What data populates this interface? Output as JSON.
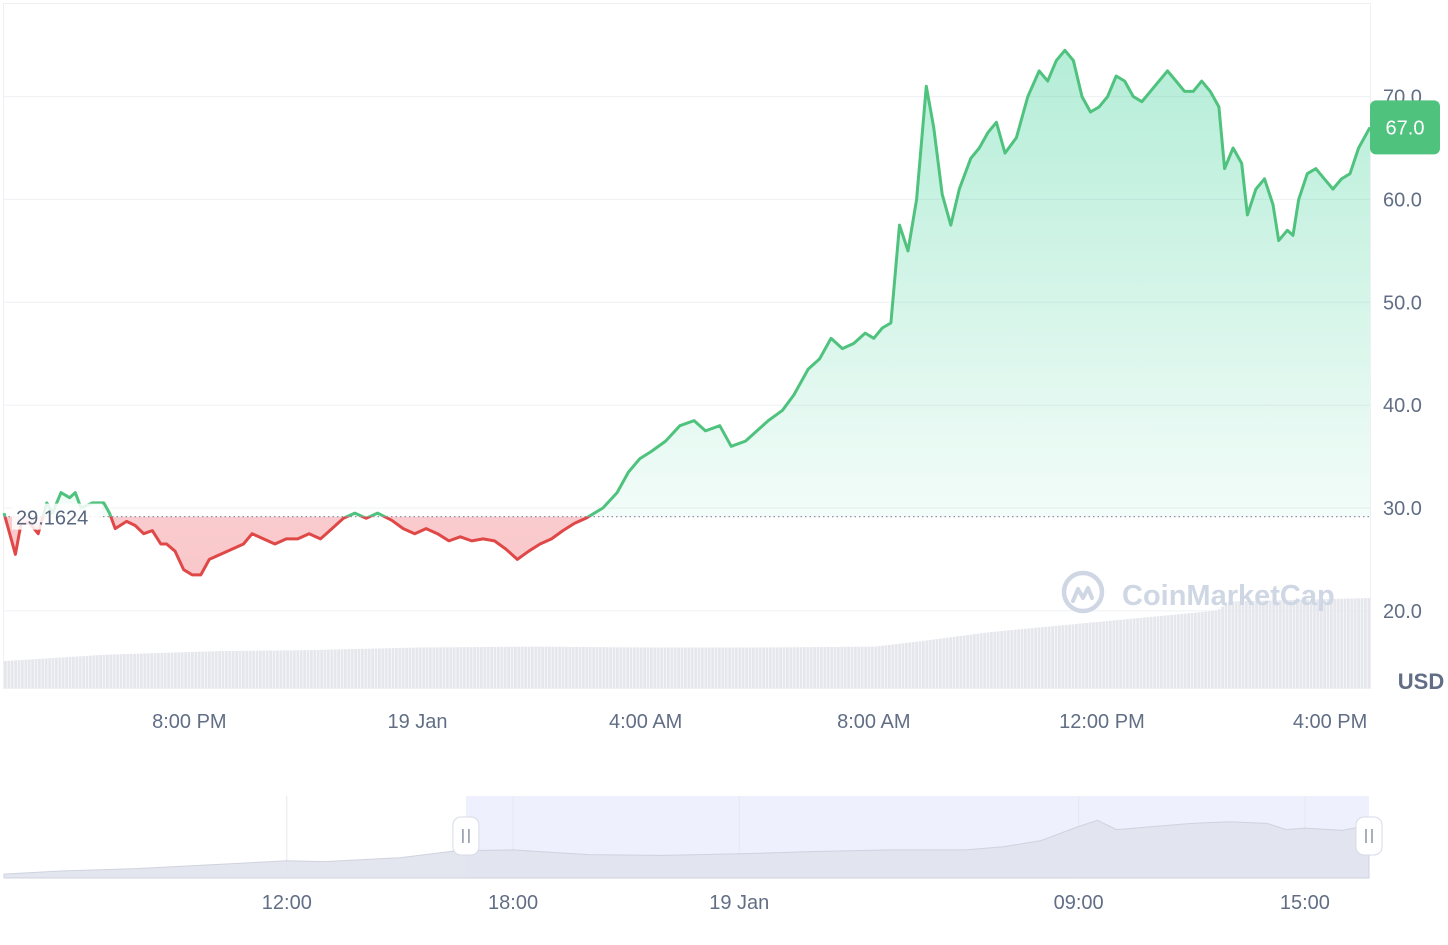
{
  "chart_data": {
    "type": "area",
    "currency_label": "USD",
    "baseline": {
      "value": 29.1624,
      "label": "29.1624"
    },
    "current_price": {
      "value": 67.0,
      "label": "67.0"
    },
    "y_ticks": [
      {
        "value": 20,
        "label": "20.0"
      },
      {
        "value": 30,
        "label": "30.0"
      },
      {
        "value": 40,
        "label": "40.0"
      },
      {
        "value": 50,
        "label": "50.0"
      },
      {
        "value": 60,
        "label": "60.0"
      },
      {
        "value": 70,
        "label": "70.0"
      }
    ],
    "x_ticks": [
      {
        "t": 20,
        "label": "8:00 PM"
      },
      {
        "t": 24,
        "label": "19 Jan"
      },
      {
        "t": 28,
        "label": "4:00 AM"
      },
      {
        "t": 32,
        "label": "8:00 AM"
      },
      {
        "t": 36,
        "label": "12:00 PM"
      },
      {
        "t": 40,
        "label": "4:00 PM"
      }
    ],
    "x_range": [
      16.75,
      40.7
    ],
    "ylim": [
      12.5,
      79
    ],
    "price_series": [
      [
        16.75,
        29.5
      ],
      [
        16.85,
        27.5
      ],
      [
        16.95,
        25.5
      ],
      [
        17.05,
        28.5
      ],
      [
        17.2,
        28.5
      ],
      [
        17.35,
        27.5
      ],
      [
        17.5,
        30.5
      ],
      [
        17.6,
        29.5
      ],
      [
        17.75,
        31.5
      ],
      [
        17.9,
        31.0
      ],
      [
        18.0,
        31.5
      ],
      [
        18.1,
        30.0
      ],
      [
        18.3,
        30.5
      ],
      [
        18.5,
        30.5
      ],
      [
        18.6,
        29.5
      ],
      [
        18.7,
        28.0
      ],
      [
        18.9,
        28.7
      ],
      [
        19.05,
        28.3
      ],
      [
        19.2,
        27.5
      ],
      [
        19.35,
        27.8
      ],
      [
        19.5,
        26.5
      ],
      [
        19.6,
        26.5
      ],
      [
        19.75,
        25.8
      ],
      [
        19.9,
        24.0
      ],
      [
        20.05,
        23.5
      ],
      [
        20.2,
        23.5
      ],
      [
        20.35,
        25.0
      ],
      [
        20.55,
        25.5
      ],
      [
        20.75,
        26.0
      ],
      [
        20.95,
        26.5
      ],
      [
        21.1,
        27.5
      ],
      [
        21.3,
        27.0
      ],
      [
        21.5,
        26.5
      ],
      [
        21.7,
        27.0
      ],
      [
        21.9,
        27.0
      ],
      [
        22.1,
        27.5
      ],
      [
        22.3,
        27.0
      ],
      [
        22.5,
        28.0
      ],
      [
        22.7,
        29.0
      ],
      [
        22.9,
        29.5
      ],
      [
        23.1,
        29.0
      ],
      [
        23.3,
        29.5
      ],
      [
        23.55,
        28.8
      ],
      [
        23.75,
        28.0
      ],
      [
        23.95,
        27.5
      ],
      [
        24.15,
        28.0
      ],
      [
        24.35,
        27.5
      ],
      [
        24.55,
        26.8
      ],
      [
        24.75,
        27.2
      ],
      [
        24.95,
        26.8
      ],
      [
        25.15,
        27.0
      ],
      [
        25.35,
        26.8
      ],
      [
        25.55,
        26.0
      ],
      [
        25.75,
        25.0
      ],
      [
        25.95,
        25.8
      ],
      [
        26.15,
        26.5
      ],
      [
        26.35,
        27.0
      ],
      [
        26.55,
        27.8
      ],
      [
        26.75,
        28.5
      ],
      [
        26.95,
        29.0
      ],
      [
        27.25,
        30.0
      ],
      [
        27.5,
        31.5
      ],
      [
        27.7,
        33.5
      ],
      [
        27.9,
        34.8
      ],
      [
        28.1,
        35.5
      ],
      [
        28.35,
        36.5
      ],
      [
        28.6,
        38.0
      ],
      [
        28.85,
        38.5
      ],
      [
        29.05,
        37.5
      ],
      [
        29.3,
        38.0
      ],
      [
        29.5,
        36.0
      ],
      [
        29.75,
        36.5
      ],
      [
        29.95,
        37.5
      ],
      [
        30.15,
        38.5
      ],
      [
        30.4,
        39.5
      ],
      [
        30.6,
        41.0
      ],
      [
        30.85,
        43.5
      ],
      [
        31.05,
        44.5
      ],
      [
        31.25,
        46.5
      ],
      [
        31.45,
        45.5
      ],
      [
        31.65,
        46.0
      ],
      [
        31.85,
        47.0
      ],
      [
        32.0,
        46.5
      ],
      [
        32.15,
        47.5
      ],
      [
        32.3,
        48.0
      ],
      [
        32.45,
        57.5
      ],
      [
        32.6,
        55.0
      ],
      [
        32.75,
        60.0
      ],
      [
        32.92,
        71.0
      ],
      [
        33.05,
        67.0
      ],
      [
        33.2,
        60.5
      ],
      [
        33.35,
        57.5
      ],
      [
        33.5,
        61.0
      ],
      [
        33.7,
        64.0
      ],
      [
        33.85,
        65.0
      ],
      [
        34.0,
        66.5
      ],
      [
        34.15,
        67.5
      ],
      [
        34.3,
        64.5
      ],
      [
        34.5,
        66.0
      ],
      [
        34.7,
        70.0
      ],
      [
        34.9,
        72.5
      ],
      [
        35.05,
        71.5
      ],
      [
        35.2,
        73.5
      ],
      [
        35.35,
        74.5
      ],
      [
        35.5,
        73.5
      ],
      [
        35.65,
        70.0
      ],
      [
        35.8,
        68.5
      ],
      [
        35.95,
        69.0
      ],
      [
        36.1,
        70.0
      ],
      [
        36.25,
        72.0
      ],
      [
        36.4,
        71.5
      ],
      [
        36.55,
        70.0
      ],
      [
        36.7,
        69.5
      ],
      [
        36.85,
        70.5
      ],
      [
        37.0,
        71.5
      ],
      [
        37.15,
        72.5
      ],
      [
        37.3,
        71.5
      ],
      [
        37.45,
        70.5
      ],
      [
        37.6,
        70.5
      ],
      [
        37.75,
        71.5
      ],
      [
        37.9,
        70.5
      ],
      [
        38.05,
        69.0
      ],
      [
        38.15,
        63.0
      ],
      [
        38.3,
        65.0
      ],
      [
        38.45,
        63.5
      ],
      [
        38.55,
        58.5
      ],
      [
        38.7,
        61.0
      ],
      [
        38.85,
        62.0
      ],
      [
        39.0,
        59.5
      ],
      [
        39.1,
        56.0
      ],
      [
        39.25,
        57.0
      ],
      [
        39.35,
        56.5
      ],
      [
        39.45,
        60.0
      ],
      [
        39.6,
        62.5
      ],
      [
        39.75,
        63.0
      ],
      [
        39.9,
        62.0
      ],
      [
        40.05,
        61.0
      ],
      [
        40.2,
        62.0
      ],
      [
        40.35,
        62.5
      ],
      [
        40.5,
        65.0
      ],
      [
        40.7,
        67.0
      ]
    ],
    "volume_relative": [
      [
        16.75,
        0.3
      ],
      [
        17.5,
        0.33
      ],
      [
        18.5,
        0.37
      ],
      [
        19.5,
        0.39
      ],
      [
        20.5,
        0.41
      ],
      [
        22.0,
        0.42
      ],
      [
        24.0,
        0.45
      ],
      [
        26.0,
        0.46
      ],
      [
        28.0,
        0.45
      ],
      [
        30.0,
        0.45
      ],
      [
        32.0,
        0.46
      ],
      [
        32.8,
        0.52
      ],
      [
        34.0,
        0.62
      ],
      [
        36.0,
        0.74
      ],
      [
        37.0,
        0.8
      ],
      [
        38.0,
        0.86
      ],
      [
        38.2,
        0.96
      ],
      [
        40.7,
        1.0
      ]
    ],
    "navigator": {
      "x_labels": [
        {
          "t": 12,
          "label": "12:00"
        },
        {
          "t": 18,
          "label": "18:00"
        },
        {
          "t": 24,
          "label": "19 Jan"
        },
        {
          "t": 33,
          "label": "09:00"
        },
        {
          "t": 39,
          "label": "15:00"
        }
      ],
      "x_range": [
        4.5,
        40.7
      ],
      "selected_range": [
        16.75,
        40.7
      ],
      "overview": [
        [
          4.5,
          0.05
        ],
        [
          6,
          0.09
        ],
        [
          8,
          0.12
        ],
        [
          10,
          0.17
        ],
        [
          12,
          0.22
        ],
        [
          13,
          0.21
        ],
        [
          15,
          0.26
        ],
        [
          16.5,
          0.35
        ],
        [
          18,
          0.36
        ],
        [
          20,
          0.3
        ],
        [
          22,
          0.29
        ],
        [
          24,
          0.31
        ],
        [
          26,
          0.34
        ],
        [
          28,
          0.36
        ],
        [
          30,
          0.36
        ],
        [
          31,
          0.4
        ],
        [
          32,
          0.48
        ],
        [
          33,
          0.66
        ],
        [
          33.5,
          0.74
        ],
        [
          34,
          0.62
        ],
        [
          35,
          0.66
        ],
        [
          36,
          0.7
        ],
        [
          37,
          0.72
        ],
        [
          38,
          0.7
        ],
        [
          38.5,
          0.62
        ],
        [
          39,
          0.64
        ],
        [
          40,
          0.61
        ],
        [
          40.7,
          0.68
        ]
      ]
    }
  },
  "watermark": {
    "text": "CoinMarketCap"
  },
  "colors": {
    "up": "#16c784",
    "up_line": "#4fc27e",
    "down_line": "#e04747",
    "down_fill": "#ea3943",
    "grid": "#eef0f4",
    "axis_text": "#616e85",
    "volume": "#e5e7ed",
    "navigator_selected": "#eef0fd",
    "navigator_area": "#d9dce9",
    "watermark": "#cfd6e4"
  }
}
